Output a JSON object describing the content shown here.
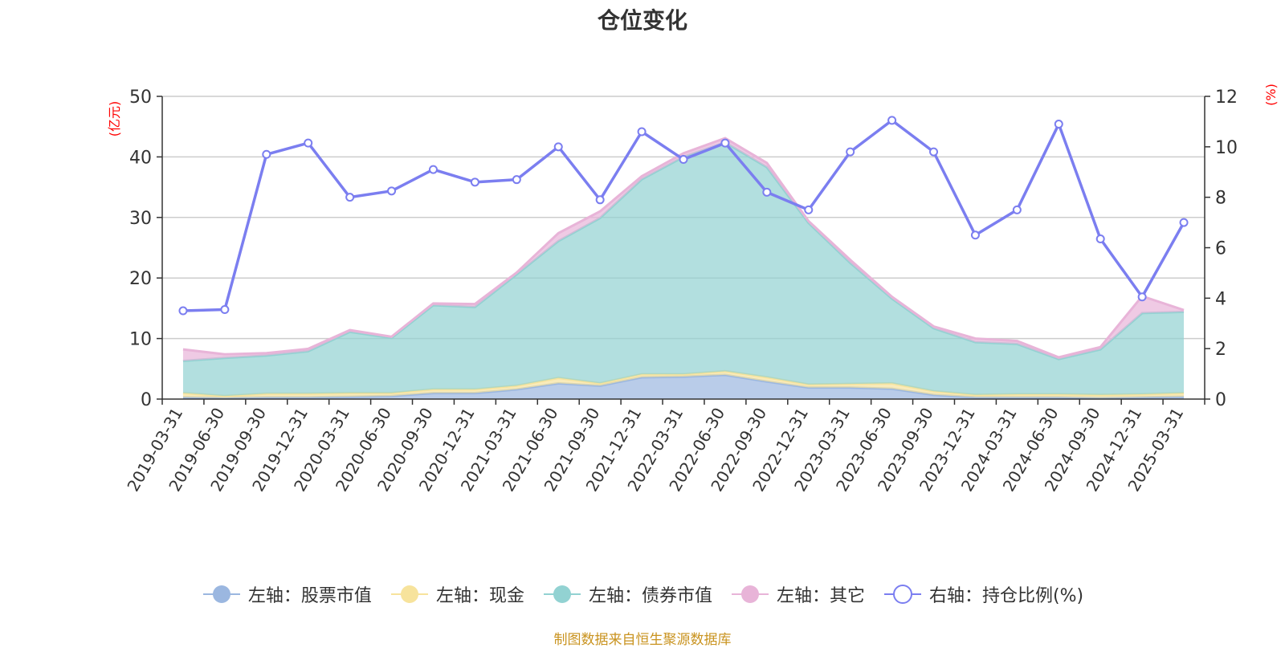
{
  "chart_data": {
    "type": "area",
    "title": "仓位变化",
    "y_left_label": "(亿元)",
    "y_right_label": "(%)",
    "y_left_range": [
      0,
      50
    ],
    "y_left_ticks": [
      "0",
      "10",
      "20",
      "30",
      "40",
      "50"
    ],
    "y_right_range": [
      0,
      12
    ],
    "y_right_ticks": [
      "0",
      "2",
      "4",
      "6",
      "8",
      "10",
      "12"
    ],
    "grid": true,
    "stacked": true,
    "categories": [
      "2019-03-31",
      "2019-06-30",
      "2019-09-30",
      "2019-12-31",
      "2020-03-31",
      "2020-06-30",
      "2020-09-30",
      "2020-12-31",
      "2021-03-31",
      "2021-06-30",
      "2021-09-30",
      "2021-12-31",
      "2022-03-31",
      "2022-06-30",
      "2022-09-30",
      "2022-12-31",
      "2023-03-31",
      "2023-06-30",
      "2023-09-30",
      "2023-12-31",
      "2024-03-31",
      "2024-06-30",
      "2024-09-30",
      "2024-12-31",
      "2025-03-31"
    ],
    "series": [
      {
        "name": "左轴：股票市值",
        "axis": "left",
        "color": "#9bb7e0",
        "values": [
          0.3,
          0.2,
          0.3,
          0.3,
          0.4,
          0.5,
          1.0,
          1.0,
          1.6,
          2.6,
          2.2,
          3.6,
          3.7,
          4.0,
          2.9,
          1.9,
          1.9,
          1.7,
          0.7,
          0.3,
          0.3,
          0.3,
          0.2,
          0.3,
          0.4
        ]
      },
      {
        "name": "左轴：现金",
        "axis": "left",
        "color": "#f7e39c",
        "values": [
          0.7,
          0.3,
          0.6,
          0.6,
          0.6,
          0.5,
          0.6,
          0.6,
          0.6,
          0.9,
          0.4,
          0.5,
          0.4,
          0.6,
          0.7,
          0.5,
          0.6,
          0.9,
          0.6,
          0.4,
          0.5,
          0.5,
          0.5,
          0.5,
          0.6
        ]
      },
      {
        "name": "左轴：债券市值",
        "axis": "left",
        "color": "#92d2d2",
        "values": [
          5.3,
          6.3,
          6.3,
          7.0,
          10.1,
          9.1,
          13.9,
          13.6,
          18.4,
          22.6,
          27.3,
          32.2,
          35.9,
          37.8,
          34.7,
          26.7,
          20.0,
          14.0,
          10.4,
          8.7,
          8.3,
          5.8,
          7.5,
          13.4,
          13.4
        ]
      },
      {
        "name": "左轴：其它",
        "axis": "left",
        "color": "#e8b4d8",
        "values": [
          1.9,
          0.6,
          0.4,
          0.4,
          0.3,
          0.2,
          0.3,
          0.5,
          0.3,
          1.3,
          1.1,
          0.5,
          0.6,
          0.7,
          0.7,
          0.3,
          0.5,
          0.3,
          0.3,
          0.6,
          0.5,
          0.3,
          0.4,
          2.8,
          0.3
        ]
      },
      {
        "name": "右轴：持仓比例(%)",
        "axis": "right",
        "color": "#7b7ef0",
        "values": [
          3.5,
          3.55,
          9.7,
          10.15,
          8.0,
          8.25,
          9.1,
          8.6,
          8.7,
          10.0,
          7.9,
          10.6,
          9.5,
          10.15,
          8.2,
          7.5,
          9.8,
          11.05,
          9.8,
          6.5,
          7.5,
          10.9,
          6.35,
          4.05,
          7.0
        ]
      }
    ]
  },
  "legend": [
    {
      "label": "左轴：股票市值",
      "color": "#9bb7e0",
      "hollow": false
    },
    {
      "label": "左轴：现金",
      "color": "#f7e39c",
      "hollow": false
    },
    {
      "label": "左轴：债券市值",
      "color": "#92d2d2",
      "hollow": false
    },
    {
      "label": "左轴：其它",
      "color": "#e8b4d8",
      "hollow": false
    },
    {
      "label": "右轴：持仓比例(%)",
      "color": "#7b7ef0",
      "hollow": true
    }
  ],
  "source_note": "制图数据来自恒生聚源数据库"
}
